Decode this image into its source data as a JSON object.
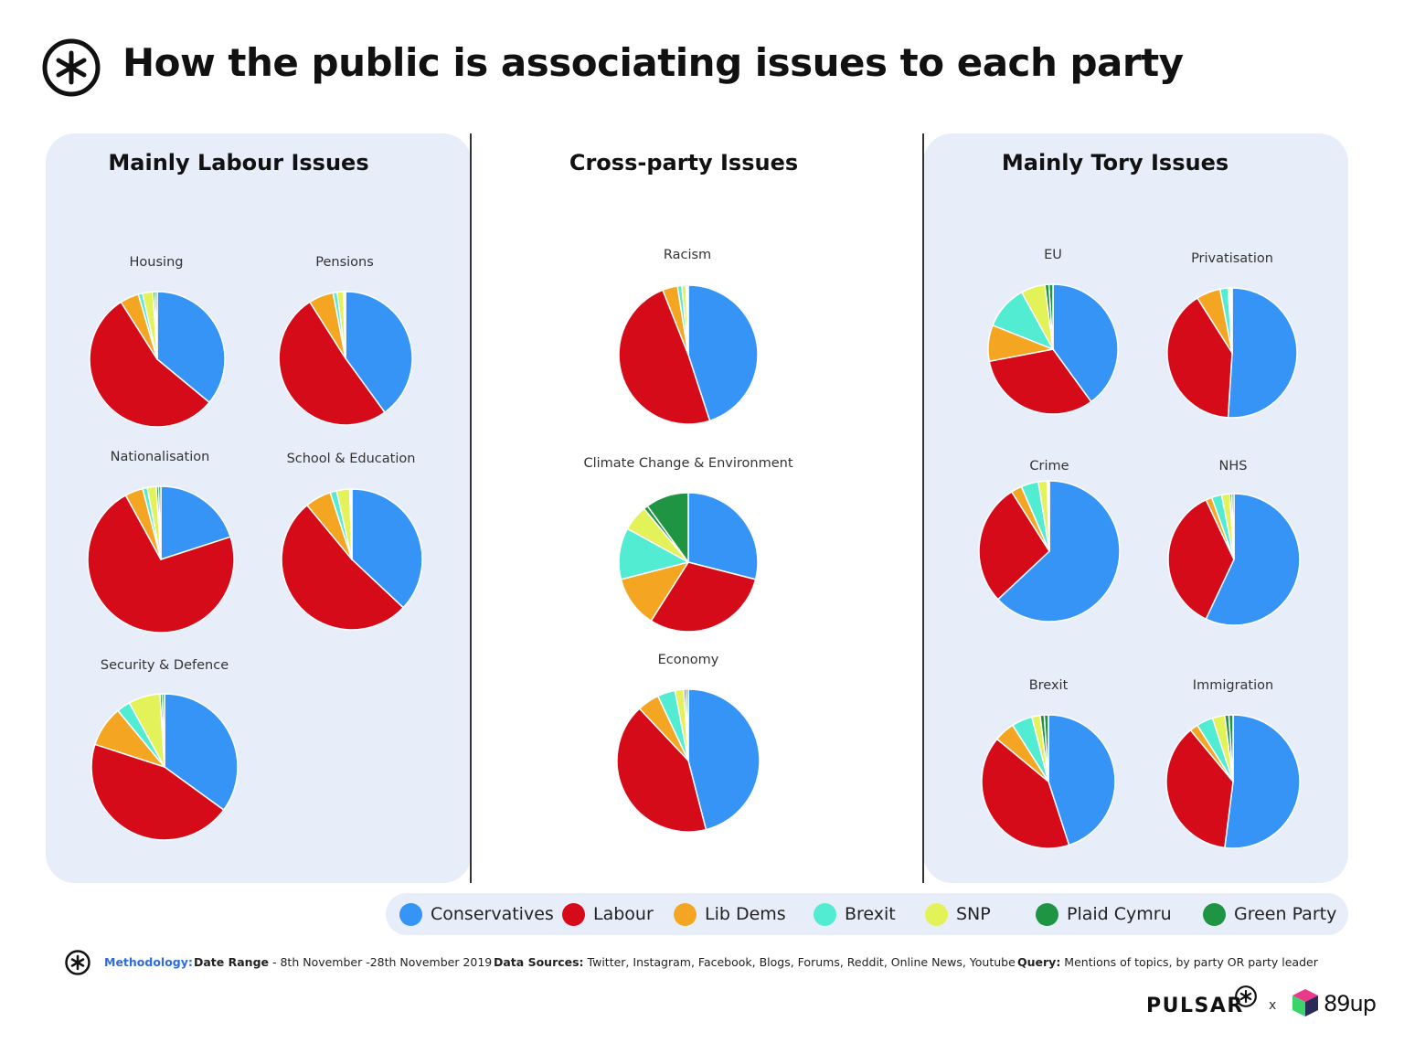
{
  "title": "How the public is associating issues to each party",
  "sections": {
    "labour": "Mainly Labour Issues",
    "cross": "Cross-party Issues",
    "tory": "Mainly Tory Issues"
  },
  "legend": [
    {
      "name": "Conservatives",
      "color": "#3594f5"
    },
    {
      "name": "Labour",
      "color": "#d50b1a"
    },
    {
      "name": "Lib Dems",
      "color": "#f4a623"
    },
    {
      "name": "Brexit",
      "color": "#52ecd3"
    },
    {
      "name": "SNP",
      "color": "#e4f25a"
    },
    {
      "name": "Plaid Cymru",
      "color": "#1f9443"
    },
    {
      "name": "Green Party",
      "color": "#1f9443"
    }
  ],
  "chart_data": [
    {
      "type": "pie",
      "section": "Mainly Labour Issues",
      "title": "Housing",
      "slices": [
        {
          "label": "Conservatives",
          "value": 36
        },
        {
          "label": "Labour",
          "value": 55
        },
        {
          "label": "Lib Dems",
          "value": 4.5
        },
        {
          "label": "Brexit",
          "value": 1
        },
        {
          "label": "SNP",
          "value": 2.5
        },
        {
          "label": "Plaid Cymru",
          "value": 0.5
        },
        {
          "label": "Green Party",
          "value": 0.5
        }
      ]
    },
    {
      "type": "pie",
      "section": "Mainly Labour Issues",
      "title": "Pensions",
      "slices": [
        {
          "label": "Conservatives",
          "value": 40
        },
        {
          "label": "Labour",
          "value": 51
        },
        {
          "label": "Lib Dems",
          "value": 6
        },
        {
          "label": "Brexit",
          "value": 1
        },
        {
          "label": "SNP",
          "value": 1.5
        },
        {
          "label": "Plaid Cymru",
          "value": 0.25
        },
        {
          "label": "Green Party",
          "value": 0.25
        }
      ]
    },
    {
      "type": "pie",
      "section": "Mainly Labour Issues",
      "title": "Nationalisation",
      "slices": [
        {
          "label": "Conservatives",
          "value": 20
        },
        {
          "label": "Labour",
          "value": 72
        },
        {
          "label": "Lib Dems",
          "value": 4
        },
        {
          "label": "Brexit",
          "value": 1
        },
        {
          "label": "SNP",
          "value": 2
        },
        {
          "label": "Plaid Cymru",
          "value": 0.5
        },
        {
          "label": "Green Party",
          "value": 0.5
        }
      ]
    },
    {
      "type": "pie",
      "section": "Mainly Labour Issues",
      "title": "School & Education",
      "slices": [
        {
          "label": "Conservatives",
          "value": 37
        },
        {
          "label": "Labour",
          "value": 52
        },
        {
          "label": "Lib Dems",
          "value": 6
        },
        {
          "label": "Brexit",
          "value": 1.5
        },
        {
          "label": "SNP",
          "value": 3
        },
        {
          "label": "Plaid Cymru",
          "value": 0.25
        },
        {
          "label": "Green Party",
          "value": 0.25
        }
      ]
    },
    {
      "type": "pie",
      "section": "Mainly Labour Issues",
      "title": "Security & Defence",
      "slices": [
        {
          "label": "Conservatives",
          "value": 35
        },
        {
          "label": "Labour",
          "value": 45
        },
        {
          "label": "Lib Dems",
          "value": 9
        },
        {
          "label": "Brexit",
          "value": 3
        },
        {
          "label": "SNP",
          "value": 7
        },
        {
          "label": "Plaid Cymru",
          "value": 0.5
        },
        {
          "label": "Green Party",
          "value": 0.5
        }
      ]
    },
    {
      "type": "pie",
      "section": "Cross-party Issues",
      "title": "Racism",
      "slices": [
        {
          "label": "Conservatives",
          "value": 45
        },
        {
          "label": "Labour",
          "value": 49
        },
        {
          "label": "Lib Dems",
          "value": 3.5
        },
        {
          "label": "Brexit",
          "value": 1
        },
        {
          "label": "SNP",
          "value": 1
        },
        {
          "label": "Plaid Cymru",
          "value": 0.25
        },
        {
          "label": "Green Party",
          "value": 0.25
        }
      ]
    },
    {
      "type": "pie",
      "section": "Cross-party Issues",
      "title": "Climate Change & Environment",
      "slices": [
        {
          "label": "Conservatives",
          "value": 29
        },
        {
          "label": "Labour",
          "value": 30
        },
        {
          "label": "Lib Dems",
          "value": 12
        },
        {
          "label": "Brexit",
          "value": 12
        },
        {
          "label": "SNP",
          "value": 6
        },
        {
          "label": "Plaid Cymru",
          "value": 1
        },
        {
          "label": "Green Party",
          "value": 10
        }
      ]
    },
    {
      "type": "pie",
      "section": "Cross-party Issues",
      "title": "Economy",
      "slices": [
        {
          "label": "Conservatives",
          "value": 46
        },
        {
          "label": "Labour",
          "value": 42
        },
        {
          "label": "Lib Dems",
          "value": 5
        },
        {
          "label": "Brexit",
          "value": 4
        },
        {
          "label": "SNP",
          "value": 2
        },
        {
          "label": "Plaid Cymru",
          "value": 0.5
        },
        {
          "label": "Green Party",
          "value": 0.5
        }
      ]
    },
    {
      "type": "pie",
      "section": "Mainly Tory Issues",
      "title": "EU",
      "slices": [
        {
          "label": "Conservatives",
          "value": 40
        },
        {
          "label": "Labour",
          "value": 32
        },
        {
          "label": "Lib Dems",
          "value": 9
        },
        {
          "label": "Brexit",
          "value": 11
        },
        {
          "label": "SNP",
          "value": 6
        },
        {
          "label": "Plaid Cymru",
          "value": 1
        },
        {
          "label": "Green Party",
          "value": 1
        }
      ]
    },
    {
      "type": "pie",
      "section": "Mainly Tory Issues",
      "title": "Privatisation",
      "slices": [
        {
          "label": "Conservatives",
          "value": 51
        },
        {
          "label": "Labour",
          "value": 40
        },
        {
          "label": "Lib Dems",
          "value": 6
        },
        {
          "label": "Brexit",
          "value": 2
        },
        {
          "label": "SNP",
          "value": 0.5
        },
        {
          "label": "Plaid Cymru",
          "value": 0.25
        },
        {
          "label": "Green Party",
          "value": 0.25
        }
      ]
    },
    {
      "type": "pie",
      "section": "Mainly Tory Issues",
      "title": "Crime",
      "slices": [
        {
          "label": "Conservatives",
          "value": 63
        },
        {
          "label": "Labour",
          "value": 28
        },
        {
          "label": "Lib Dems",
          "value": 2.5
        },
        {
          "label": "Brexit",
          "value": 4
        },
        {
          "label": "SNP",
          "value": 2
        },
        {
          "label": "Plaid Cymru",
          "value": 0.25
        },
        {
          "label": "Green Party",
          "value": 0.25
        }
      ]
    },
    {
      "type": "pie",
      "section": "Mainly Tory Issues",
      "title": "NHS",
      "slices": [
        {
          "label": "Conservatives",
          "value": 57
        },
        {
          "label": "Labour",
          "value": 36
        },
        {
          "label": "Lib Dems",
          "value": 1.5
        },
        {
          "label": "Brexit",
          "value": 2.5
        },
        {
          "label": "SNP",
          "value": 2
        },
        {
          "label": "Plaid Cymru",
          "value": 0.5
        },
        {
          "label": "Green Party",
          "value": 0.5
        }
      ]
    },
    {
      "type": "pie",
      "section": "Mainly Tory Issues",
      "title": "Brexit",
      "slices": [
        {
          "label": "Conservatives",
          "value": 45
        },
        {
          "label": "Labour",
          "value": 41
        },
        {
          "label": "Lib Dems",
          "value": 5
        },
        {
          "label": "Brexit",
          "value": 5
        },
        {
          "label": "SNP",
          "value": 2
        },
        {
          "label": "Plaid Cymru",
          "value": 1
        },
        {
          "label": "Green Party",
          "value": 1
        }
      ]
    },
    {
      "type": "pie",
      "section": "Mainly Tory Issues",
      "title": "Immigration",
      "slices": [
        {
          "label": "Conservatives",
          "value": 52
        },
        {
          "label": "Labour",
          "value": 37
        },
        {
          "label": "Lib Dems",
          "value": 2
        },
        {
          "label": "Brexit",
          "value": 4
        },
        {
          "label": "SNP",
          "value": 3
        },
        {
          "label": "Plaid Cymru",
          "value": 1
        },
        {
          "label": "Green Party",
          "value": 1
        }
      ]
    }
  ],
  "footer": {
    "methodology_label": "Methodology:",
    "date_range_label": "Date Range",
    "date_range_value": " - 8th November -28th November 2019",
    "sources_label": "Data Sources:",
    "sources_value": " Twitter, Instagram, Facebook, Blogs, Forums, Reddit, Online News, Youtube",
    "query_label": "Query:",
    "query_value": " Mentions of topics, by party OR party leader"
  },
  "brand": {
    "pulsar": "PULSAR",
    "x": "x",
    "partner": "89up"
  }
}
